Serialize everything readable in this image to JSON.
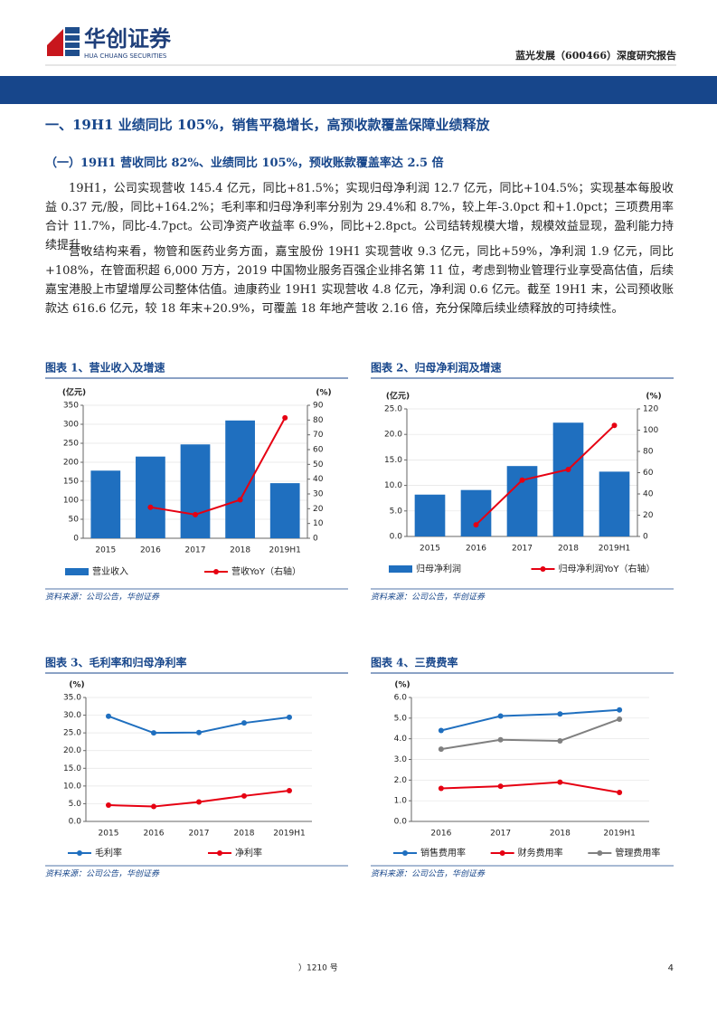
{
  "header": {
    "logo_cn": "华创证券",
    "logo_en": "HUA CHUANG SECURITIES",
    "report": "蓝光发展（600466）深度研究报告"
  },
  "heading": "一、19H1 业绩同比 105%，销售平稳增长，高预收款覆盖保障业绩释放",
  "subheading": "（一）19H1 营收同比 82%、业绩同比 105%，预收账款覆盖率达 2.5 倍",
  "paragraphs": [
    "19H1，公司实现营收 145.4 亿元，同比+81.5%；实现归母净利润 12.7 亿元，同比+104.5%；实现基本每股收益 0.37 元/股，同比+164.2%；毛利率和归母净利率分别为 29.4%和 8.7%，较上年-3.0pct 和+1.0pct；三项费用率合计 11.7%，同比-4.7pct。公司净资产收益率 6.9%，同比+2.8pct。公司结转规模大增，规模效益显现，盈利能力持续提升。",
    "营收结构来看，物管和医药业务方面，嘉宝股份 19H1 实现营收 9.3 亿元，同比+59%，净利润 1.9 亿元，同比+108%，在管面积超 6,000 万方，2019 中国物业服务百强企业排名第 11 位，考虑到物业管理行业享受高估值，后续嘉宝港股上市望增厚公司整体估值。迪康药业 19H1 实现营收 4.8 亿元，净利润 0.6 亿元。截至 19H1 末，公司预收账款达 616.6 亿元，较 18 年末+20.9%，可覆盖 18 年地产营收 2.16 倍，充分保障后续业绩释放的可持续性。"
  ],
  "chart_data": [
    {
      "type": "combo",
      "title": "图表 1、营业收入及增速",
      "source": "资料来源：公司公告，华创证券",
      "y_unit": "(亿元)",
      "y2_unit": "(%)",
      "categories": [
        "2015",
        "2016",
        "2017",
        "2018",
        "2019H1"
      ],
      "series": [
        {
          "name": "营业收入",
          "color": "#1f6fbf",
          "values": [
            178,
            215,
            247,
            310,
            145
          ]
        },
        {
          "name": "营收YoY（右轴）",
          "color": "#e60012",
          "axis": "y2",
          "values": [
            null,
            21,
            16,
            26,
            81.5
          ]
        }
      ],
      "ylim": [
        0,
        350
      ],
      "yticks": [
        0,
        50,
        100,
        150,
        200,
        250,
        300,
        350
      ],
      "y2lim": [
        0,
        90
      ],
      "y2ticks": [
        0,
        10,
        20,
        30,
        40,
        50,
        60,
        70,
        80,
        90
      ],
      "grid": true
    },
    {
      "type": "combo",
      "title": "图表 2、归母净利润及增速",
      "source": "资料来源：公司公告，华创证券",
      "y_unit": "(亿元)",
      "y2_unit": "(%)",
      "categories": [
        "2015",
        "2016",
        "2017",
        "2018",
        "2019H1"
      ],
      "series": [
        {
          "name": "归母净利润",
          "color": "#1f6fbf",
          "values": [
            8.2,
            9.1,
            13.8,
            22.3,
            12.7
          ]
        },
        {
          "name": "归母净利润YoY（右轴）",
          "color": "#e60012",
          "axis": "y2",
          "values": [
            null,
            11,
            53,
            63,
            104.5
          ]
        }
      ],
      "ylim": [
        0,
        25
      ],
      "yticks": [
        {
          "value": 0,
          "label": "0.0"
        },
        {
          "value": 5,
          "label": "5.0"
        },
        {
          "value": 10,
          "label": "10.0"
        },
        {
          "value": 15,
          "label": "15.0"
        },
        {
          "value": 20,
          "label": "20.0"
        },
        {
          "value": 25,
          "label": "25.0"
        }
      ],
      "y2lim": [
        0,
        120
      ],
      "y2ticks": [
        0,
        20,
        40,
        60,
        80,
        100,
        120
      ],
      "grid": true
    },
    {
      "type": "line",
      "title": "图表 3、毛利率和归母净利率",
      "source": "资料来源：公司公告，华创证券",
      "y_unit": "(%)",
      "categories": [
        "2015",
        "2016",
        "2017",
        "2018",
        "2019H1"
      ],
      "series": [
        {
          "name": "毛利率",
          "color": "#1f6fbf",
          "values": [
            29.7,
            25,
            25.1,
            27.8,
            29.4
          ]
        },
        {
          "name": "净利率",
          "color": "#e60012",
          "values": [
            4.6,
            4.2,
            5.5,
            7.2,
            8.7
          ]
        }
      ],
      "ylim": [
        0,
        35
      ],
      "yticks": [
        {
          "value": 0,
          "label": "0.0"
        },
        {
          "value": 5,
          "label": "5.0"
        },
        {
          "value": 10,
          "label": "10.0"
        },
        {
          "value": 15,
          "label": "15.0"
        },
        {
          "value": 20,
          "label": "20.0"
        },
        {
          "value": 25,
          "label": "25.0"
        },
        {
          "value": 30,
          "label": "30.0"
        },
        {
          "value": 35,
          "label": "35.0"
        }
      ],
      "grid": true
    },
    {
      "type": "line",
      "title": "图表 4、三费费率",
      "source": "资料来源：公司公告，华创证券",
      "y_unit": "(%)",
      "categories": [
        "2016",
        "2017",
        "2018",
        "2019H1"
      ],
      "series": [
        {
          "name": "销售费用率",
          "color": "#1f6fbf",
          "values": [
            4.4,
            5.1,
            5.2,
            5.4
          ]
        },
        {
          "name": "财务费用率",
          "color": "#e60012",
          "values": [
            1.6,
            1.7,
            1.9,
            1.4
          ]
        },
        {
          "name": "管理费用率",
          "color": "#808080",
          "values": [
            3.5,
            3.95,
            3.9,
            4.95
          ]
        }
      ],
      "ylim": [
        0,
        6
      ],
      "yticks": [
        {
          "value": 0,
          "label": "0.0"
        },
        {
          "value": 1,
          "label": "1.0"
        },
        {
          "value": 2,
          "label": "2.0"
        },
        {
          "value": 3,
          "label": "3.0"
        },
        {
          "value": 4,
          "label": "4.0"
        },
        {
          "value": 5,
          "label": "5.0"
        },
        {
          "value": 6,
          "label": "6.0"
        }
      ],
      "grid": true
    }
  ],
  "footer": {
    "note": "）1210 号",
    "page": "4"
  }
}
